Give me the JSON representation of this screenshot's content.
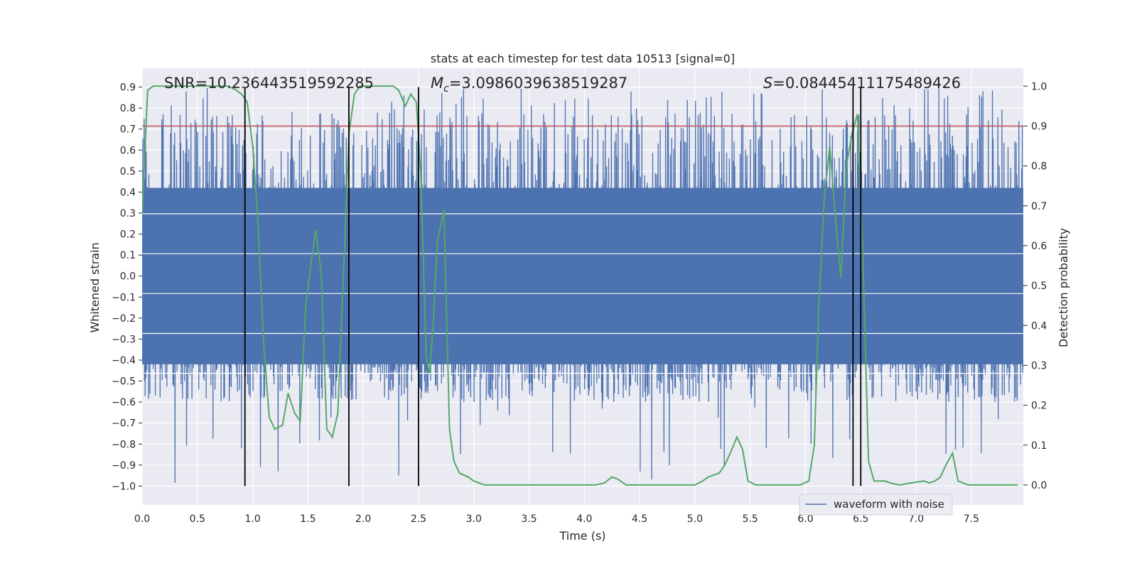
{
  "chart_data": {
    "type": "line",
    "title": "stats at each timestep for test data 10513 [signal=0]",
    "xlabel": "Time (s)",
    "ylabel": "Whitened strain",
    "y2label": "Detection probability",
    "xlim": [
      0.0,
      7.97
    ],
    "ylim": [
      -1.09,
      0.99
    ],
    "y2lim": [
      -0.05,
      1.045
    ],
    "x_ticks": [
      0.0,
      0.5,
      1.0,
      1.5,
      2.0,
      2.5,
      3.0,
      3.5,
      4.0,
      4.5,
      5.0,
      5.5,
      6.0,
      6.5,
      7.0,
      7.5
    ],
    "x_tick_labels": [
      "0.0",
      "0.5",
      "1.0",
      "1.5",
      "2.0",
      "2.5",
      "3.0",
      "3.5",
      "4.0",
      "4.5",
      "5.0",
      "5.5",
      "6.0",
      "6.5",
      "7.0",
      "7.5"
    ],
    "y_ticks": [
      0.9,
      0.8,
      0.7,
      0.6,
      0.5,
      0.4,
      0.3,
      0.2,
      0.1,
      0.0,
      -0.1,
      -0.2,
      -0.3,
      -0.4,
      -0.5,
      -0.6,
      -0.7,
      -0.8,
      -0.9,
      -1.0
    ],
    "y_tick_labels": [
      "0.9",
      "0.8",
      "0.7",
      "0.6",
      "0.5",
      "0.4",
      "0.3",
      "0.2",
      "0.1",
      "0.0",
      "−0.1",
      "−0.2",
      "−0.3",
      "−0.4",
      "−0.5",
      "−0.6",
      "−0.7",
      "−0.8",
      "−0.9",
      "−1.0"
    ],
    "y2_ticks": [
      1.0,
      0.9,
      0.8,
      0.7,
      0.6,
      0.5,
      0.4,
      0.3,
      0.2,
      0.1,
      0.0
    ],
    "y2_tick_labels": [
      "1.0",
      "0.9",
      "0.8",
      "0.7",
      "0.6",
      "0.5",
      "0.4",
      "0.3",
      "0.2",
      "0.1",
      "0.0"
    ],
    "annotations": {
      "snr": "SNR=10.236443519592285",
      "mc_symbol": "M",
      "mc_sub": "c",
      "mc_value": "=3.0986039638519287",
      "s_symbol": "S",
      "s_value": "=0.08445411175489426"
    },
    "threshold": 0.9,
    "threshold_axis": "y2",
    "vertical_markers": [
      0.93,
      1.87,
      2.5,
      6.43,
      6.5
    ],
    "vertical_marker_range": [
      -1.0,
      0.9
    ],
    "waveform": {
      "name": "waveform with noise",
      "core_range": [
        -0.42,
        0.42
      ],
      "typical_peak_range": [
        -0.6,
        0.78
      ],
      "extreme_range": [
        -0.99,
        0.9
      ]
    },
    "detection_probability": {
      "x": [
        0.0,
        0.05,
        0.1,
        0.15,
        0.2,
        0.3,
        0.4,
        0.5,
        0.6,
        0.7,
        0.78,
        0.85,
        0.9,
        0.95,
        1.0,
        1.05,
        1.1,
        1.15,
        1.2,
        1.27,
        1.32,
        1.38,
        1.43,
        1.48,
        1.53,
        1.57,
        1.62,
        1.67,
        1.72,
        1.77,
        1.82,
        1.87,
        1.92,
        1.97,
        2.03,
        2.1,
        2.2,
        2.27,
        2.32,
        2.38,
        2.43,
        2.48,
        2.52,
        2.57,
        2.6,
        2.63,
        2.67,
        2.73,
        2.78,
        2.82,
        2.87,
        2.95,
        3.0,
        3.1,
        3.25,
        3.5,
        3.75,
        3.85,
        3.95,
        4.1,
        4.18,
        4.25,
        4.3,
        4.38,
        4.45,
        4.6,
        4.8,
        5.0,
        5.07,
        5.12,
        5.17,
        5.22,
        5.27,
        5.32,
        5.38,
        5.43,
        5.48,
        5.55,
        5.7,
        5.85,
        5.95,
        6.03,
        6.08,
        6.12,
        6.17,
        6.22,
        6.27,
        6.32,
        6.37,
        6.42,
        6.47,
        6.52,
        6.57,
        6.62,
        6.67,
        6.72,
        6.77,
        6.85,
        6.95,
        7.07,
        7.12,
        7.17,
        7.22,
        7.27,
        7.33,
        7.38,
        7.47,
        7.6,
        7.75,
        7.92
      ],
      "y": [
        0.68,
        0.99,
        1.0,
        1.0,
        1.0,
        1.0,
        1.0,
        1.0,
        1.0,
        1.0,
        1.0,
        0.99,
        0.98,
        0.96,
        0.85,
        0.65,
        0.35,
        0.17,
        0.14,
        0.15,
        0.23,
        0.18,
        0.16,
        0.45,
        0.56,
        0.64,
        0.53,
        0.14,
        0.12,
        0.18,
        0.52,
        0.88,
        0.98,
        1.0,
        1.0,
        1.0,
        1.0,
        1.0,
        0.99,
        0.95,
        0.98,
        0.96,
        0.78,
        0.32,
        0.28,
        0.39,
        0.61,
        0.69,
        0.14,
        0.06,
        0.03,
        0.02,
        0.01,
        0.0,
        0.0,
        0.0,
        0.0,
        0.0,
        0.0,
        0.0,
        0.005,
        0.02,
        0.015,
        0.0,
        0.0,
        0.0,
        0.0,
        0.0,
        0.01,
        0.02,
        0.025,
        0.03,
        0.05,
        0.08,
        0.12,
        0.09,
        0.01,
        0.0,
        0.0,
        0.0,
        0.0,
        0.01,
        0.1,
        0.45,
        0.72,
        0.85,
        0.67,
        0.52,
        0.8,
        0.88,
        0.93,
        0.56,
        0.06,
        0.01,
        0.01,
        0.01,
        0.005,
        0.0,
        0.005,
        0.01,
        0.005,
        0.01,
        0.02,
        0.05,
        0.08,
        0.01,
        0.0,
        0.0,
        0.0,
        0.0
      ]
    },
    "grid": true,
    "legend_position": "bottom-right",
    "colors": {
      "background": "#eaeaf2",
      "grid": "#ffffff",
      "waveform": "#4c72b0",
      "probability": "#55a868",
      "threshold": "#c44e52",
      "markers": "#000000"
    }
  }
}
